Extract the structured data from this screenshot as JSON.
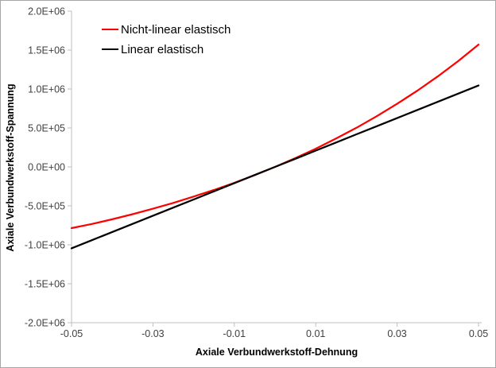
{
  "chart_data": {
    "type": "line",
    "title": "",
    "xlabel": "Axiale Verbundwerkstoff-Dehnung",
    "ylabel": "Axiale Verbundwerkstoff-Spannung",
    "xlim": [
      -0.05,
      0.05
    ],
    "ylim": [
      -2000000,
      2000000
    ],
    "grid": false,
    "legend_position": "top-left-inside",
    "x_ticks": [
      {
        "value": -0.05,
        "label": "-0.05"
      },
      {
        "value": -0.03,
        "label": "-0.03"
      },
      {
        "value": -0.01,
        "label": "-0.01"
      },
      {
        "value": 0.01,
        "label": "0.01"
      },
      {
        "value": 0.03,
        "label": "0.03"
      },
      {
        "value": 0.05,
        "label": "0.05"
      }
    ],
    "y_ticks": [
      {
        "value": 2000000,
        "label": "2.0E+06"
      },
      {
        "value": 1500000,
        "label": "1.5E+06"
      },
      {
        "value": 1000000,
        "label": "1.0E+06"
      },
      {
        "value": 500000,
        "label": "5.0E+05"
      },
      {
        "value": 0,
        "label": "0.0E+00"
      },
      {
        "value": -500000,
        "label": "-5.0E+05"
      },
      {
        "value": -1000000,
        "label": "-1.0E+06"
      },
      {
        "value": -1500000,
        "label": "-1.5E+06"
      },
      {
        "value": -2000000,
        "label": "-2.0E+06"
      }
    ],
    "series": [
      {
        "name": "Nicht-linear elastisch",
        "color": "#ff0000",
        "x": [
          -0.05,
          -0.045,
          -0.04,
          -0.035,
          -0.03,
          -0.025,
          -0.02,
          -0.015,
          -0.01,
          -0.005,
          0,
          0.005,
          0.01,
          0.015,
          0.02,
          0.025,
          0.03,
          0.035,
          0.04,
          0.045,
          0.05
        ],
        "y": [
          -786000,
          -733000,
          -672000,
          -607000,
          -537000,
          -462000,
          -381000,
          -296000,
          -204000,
          -105000,
          0,
          113000,
          234000,
          364000,
          502000,
          651000,
          810000,
          980000,
          1162000,
          1358000,
          1570000
        ]
      },
      {
        "name": "Linear elastisch",
        "color": "#000000",
        "x": [
          -0.05,
          -0.045,
          -0.04,
          -0.035,
          -0.03,
          -0.025,
          -0.02,
          -0.015,
          -0.01,
          -0.005,
          0,
          0.005,
          0.01,
          0.015,
          0.02,
          0.025,
          0.03,
          0.035,
          0.04,
          0.045,
          0.05
        ],
        "y": [
          -1045000,
          -940500,
          -836000,
          -731500,
          -627000,
          -522500,
          -418000,
          -313500,
          -209000,
          -104500,
          0,
          104500,
          209000,
          313500,
          418000,
          522500,
          627000,
          731500,
          836000,
          940500,
          1045000
        ]
      }
    ]
  },
  "style": {
    "axis_line_color": "#bfbfbf",
    "tick_label_color": "#404040",
    "axis_title_color": "#000000",
    "frame_border_color": "#a6a6a6",
    "background_color": "#ffffff",
    "series_line_width": 2.25,
    "legend_swatch_width": 21
  }
}
